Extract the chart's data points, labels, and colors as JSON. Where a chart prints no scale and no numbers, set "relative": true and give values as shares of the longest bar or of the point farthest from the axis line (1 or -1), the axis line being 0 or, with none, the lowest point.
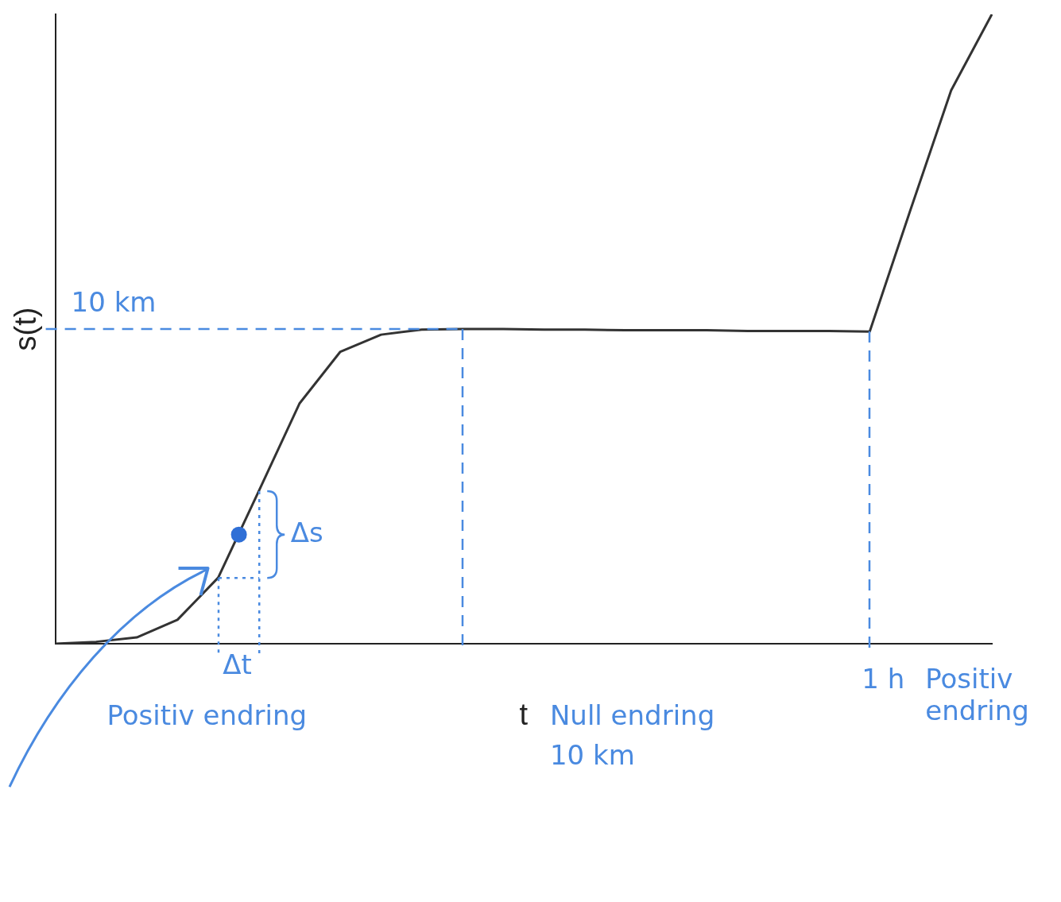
{
  "chart_data": {
    "type": "line",
    "relative": true,
    "xlabel": "t",
    "ylabel": "s(t)",
    "grid": false,
    "legend": false,
    "marker": "none",
    "line_style": "solid",
    "categories": [
      null,
      null,
      null,
      null,
      null,
      null,
      null,
      null,
      null,
      null,
      null,
      null,
      null,
      null,
      null,
      null,
      null,
      null,
      null,
      null,
      null,
      null,
      null,
      null
    ],
    "series": [
      {
        "color": "#333333",
        "values": [
          0,
          0.003,
          0.01,
          0.038,
          0.105,
          0.243,
          0.382,
          0.464,
          0.491,
          0.499,
          0.5,
          0.5,
          0.499,
          0.499,
          0.498,
          0.498,
          0.498,
          0.497,
          0.497,
          0.497,
          0.496,
          0.689,
          0.879,
          1
        ]
      }
    ],
    "ref_lines": [
      {
        "axis": "y",
        "value": 0.5,
        "label": "10 km",
        "color": "#4a8ae0",
        "line_style": "dashed"
      }
    ],
    "annotations": [
      "Δs",
      "Δt",
      "1 h",
      "Positiv endring",
      "Null endring",
      "Positiv endring",
      "10 km"
    ]
  }
}
